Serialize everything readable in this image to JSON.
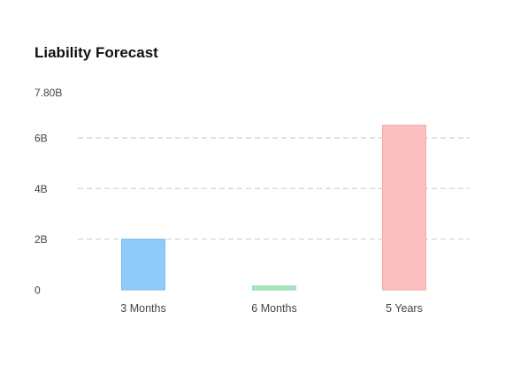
{
  "chart_data": {
    "type": "bar",
    "title": "Liability Forecast",
    "categories": [
      "3 Months",
      "6 Months",
      "5 Years"
    ],
    "values": [
      2.0,
      0.15,
      6.5
    ],
    "colors": [
      {
        "fill": "#90caf9",
        "stroke": "#7dbbe8"
      },
      {
        "fill": "#a8e6c0",
        "stroke": "#8fd6ab"
      },
      {
        "fill": "#fbbfbf",
        "stroke": "#f0a9a9"
      }
    ],
    "yunit": "B",
    "ylim": [
      0,
      7.8
    ],
    "yticks": [
      {
        "value": 0,
        "label": "0",
        "grid": false
      },
      {
        "value": 2,
        "label": "2B",
        "grid": true
      },
      {
        "value": 4,
        "label": "4B",
        "grid": true
      },
      {
        "value": 6,
        "label": "6B",
        "grid": true
      },
      {
        "value": 7.8,
        "label": "7.80B",
        "grid": false
      }
    ],
    "xlabel": "",
    "ylabel": "",
    "grid": true,
    "legend": "none"
  }
}
